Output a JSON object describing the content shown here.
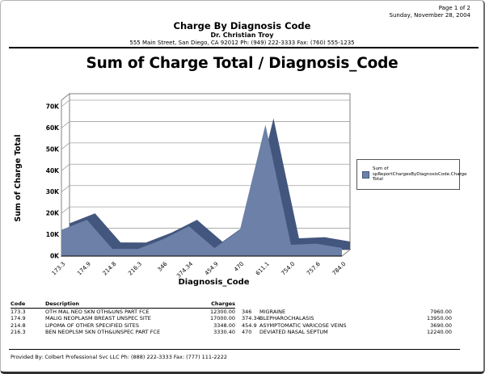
{
  "page": {
    "page_info": "Page 1 of 2",
    "date": "Sunday, November 28, 2004",
    "title": "Charge By Diagnosis Code",
    "doctor": "Dr. Christian Troy",
    "address": "555 Main Street, San Diego, CA 92012 Ph: (949) 222-3333 Fax: (760) 555-1235",
    "footer": "Provided By: Colbert Professional Svc LLC Ph: (888) 222-3333 Fax: (777) 111-2222"
  },
  "chart_data": {
    "type": "area",
    "title": "Sum of Charge Total / Diagnosis_Code",
    "xlabel": "Diagnosis_Code",
    "ylabel": "Sum of Charge Total",
    "categories": [
      "173.3",
      "174.9",
      "214.8",
      "216.3",
      "346",
      "374.34",
      "454.9",
      "470",
      "611.1",
      "754.0",
      "757.6",
      "784.0"
    ],
    "values": [
      12300,
      17000,
      3348,
      3330.4,
      7960,
      13950,
      3690,
      12240,
      61500,
      5300,
      5800,
      3800
    ],
    "ylim": [
      0,
      70000
    ],
    "ytick_labels": [
      "0K",
      "10K",
      "20K",
      "30K",
      "40K",
      "50K",
      "60K",
      "70K"
    ],
    "grid": true,
    "legend": {
      "position": "right",
      "label_lines": [
        "Sum of",
        "spReportChargesByDiagnosisCode.Charge",
        "Total"
      ]
    },
    "colors": {
      "area_front": "#6c80a8",
      "area_side": "#43567e",
      "gridline": "#a0a0a0",
      "wall_border": "#808080"
    }
  },
  "table": {
    "headers": {
      "code": "Code",
      "description": "Description",
      "charges": "Charges"
    },
    "rows": [
      {
        "code": "173.3",
        "description": "OTH MAL NEO SKN OTH&UNS PART FCE",
        "charges": "12300.00",
        "code2": "346",
        "description2": "MIGRAINE",
        "charges2": "7960.00"
      },
      {
        "code": "174.9",
        "description": "MALIG NEOPLASM BREAST UNSPEC SITE",
        "charges": "17000.00",
        "code2": "374.34",
        "description2": "BLEPHAROCHALASIS",
        "charges2": "13950.00"
      },
      {
        "code": "214.8",
        "description": "LIPOMA OF OTHER SPECIFIED SITES",
        "charges": "3348.00",
        "code2": "454.9",
        "description2": "ASYMPTOMATIC VARICOSE VEINS",
        "charges2": "3690.00"
      },
      {
        "code": "216.3",
        "description": "BEN NEOPLSM SKN OTH&UNSPEC PART FCE",
        "charges": "3330.40",
        "code2": "470",
        "description2": "DEVIATED NASAL SEPTUM",
        "charges2": "12240.00"
      }
    ]
  }
}
